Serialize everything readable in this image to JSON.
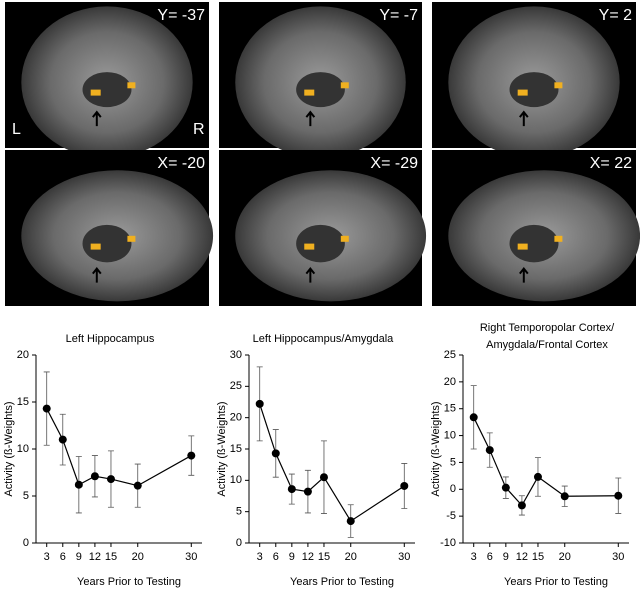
{
  "images": {
    "panels": [
      {
        "label": "Y= -37"
      },
      {
        "label": "Y= -7"
      },
      {
        "label": "Y= 2"
      },
      {
        "label": "X= -20"
      },
      {
        "label": "X= -29"
      },
      {
        "label": "X= 22"
      }
    ],
    "sides": [
      "L",
      "R"
    ]
  },
  "chart_data": [
    {
      "type": "line",
      "title": "Left Hippocampus",
      "xlabel": "Years Prior to Testing",
      "ylabel": "Activity (ß-Weights)",
      "x": [
        3,
        6,
        9,
        12,
        15,
        20,
        30
      ],
      "values": [
        14.3,
        11.0,
        6.2,
        7.1,
        6.8,
        6.1,
        9.3
      ],
      "errors": [
        3.9,
        2.7,
        3.0,
        2.2,
        3.0,
        2.3,
        2.1
      ],
      "xlim": [
        1,
        32
      ],
      "xticks": [
        3,
        6,
        9,
        12,
        15,
        20,
        30
      ],
      "ylim": [
        0,
        20
      ],
      "yticks": [
        0,
        5,
        10,
        15,
        20
      ],
      "color": "#000000"
    },
    {
      "type": "line",
      "title": "Left Hippocampus/Amygdala",
      "xlabel": "Years Prior to Testing",
      "ylabel": "Activity (ß-Weights)",
      "x": [
        3,
        6,
        9,
        12,
        15,
        20,
        30
      ],
      "values": [
        22.2,
        14.3,
        8.6,
        8.2,
        10.5,
        3.5,
        9.1
      ],
      "errors": [
        5.9,
        3.8,
        2.4,
        3.4,
        5.8,
        2.6,
        3.6
      ],
      "xlim": [
        1,
        32
      ],
      "xticks": [
        3,
        6,
        9,
        12,
        15,
        20,
        30
      ],
      "ylim": [
        0,
        30
      ],
      "yticks": [
        0,
        5,
        10,
        15,
        20,
        25,
        30
      ],
      "color": "#000000"
    },
    {
      "type": "line",
      "title": [
        "Right Temporopolar Cortex/",
        "Amygdala/Frontal Cortex"
      ],
      "xlabel": "Years Prior to Testing",
      "ylabel": "Activity (ß-Weights)",
      "x": [
        3,
        6,
        9,
        12,
        15,
        20,
        30
      ],
      "values": [
        13.4,
        7.3,
        0.3,
        -3.0,
        2.3,
        -1.3,
        -1.2
      ],
      "errors": [
        5.9,
        3.2,
        2.0,
        1.8,
        3.6,
        1.9,
        3.3
      ],
      "xlim": [
        1,
        32
      ],
      "xticks": [
        3,
        6,
        9,
        12,
        15,
        20,
        30
      ],
      "ylim": [
        -10,
        25
      ],
      "yticks": [
        -10,
        -5,
        0,
        5,
        10,
        15,
        20,
        25
      ],
      "color": "#000000"
    }
  ]
}
